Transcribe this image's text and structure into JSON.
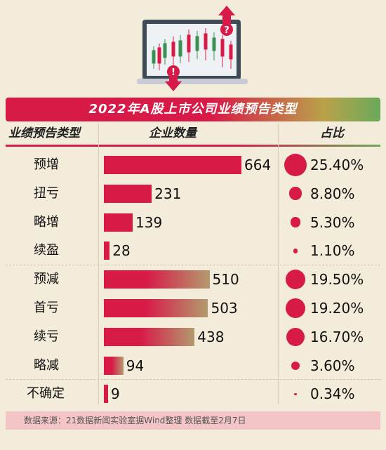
{
  "title": "2022年A股上市公司业绩预告类型",
  "headers": {
    "type": "业绩预告类型",
    "count": "企业数量",
    "share": "占比"
  },
  "chart_data": {
    "type": "bar",
    "title": "2022年A股上市公司业绩预告类型",
    "categories": [
      "预增",
      "扭亏",
      "略增",
      "续盈",
      "预减",
      "首亏",
      "续亏",
      "略减",
      "不确定"
    ],
    "values": [
      664,
      231,
      139,
      28,
      510,
      503,
      438,
      94,
      9
    ],
    "shares": [
      "25.40%",
      "8.80%",
      "5.30%",
      "1.10%",
      "19.50%",
      "19.20%",
      "16.70%",
      "3.60%",
      "0.34%"
    ],
    "share_values": [
      25.4,
      8.8,
      5.3,
      1.1,
      19.5,
      19.2,
      16.7,
      3.6,
      0.34
    ],
    "groups": [
      "positive",
      "positive",
      "positive",
      "positive",
      "negative",
      "negative",
      "negative",
      "negative",
      "uncertain"
    ],
    "colors": {
      "positive": "#d81a48",
      "negative_start": "#d81a48",
      "negative_end": "#b39a6e",
      "uncertain": "#d81a48"
    }
  },
  "footer": "数据来源：21数据新闻实验室据Wind整理 数据截至2月7日"
}
